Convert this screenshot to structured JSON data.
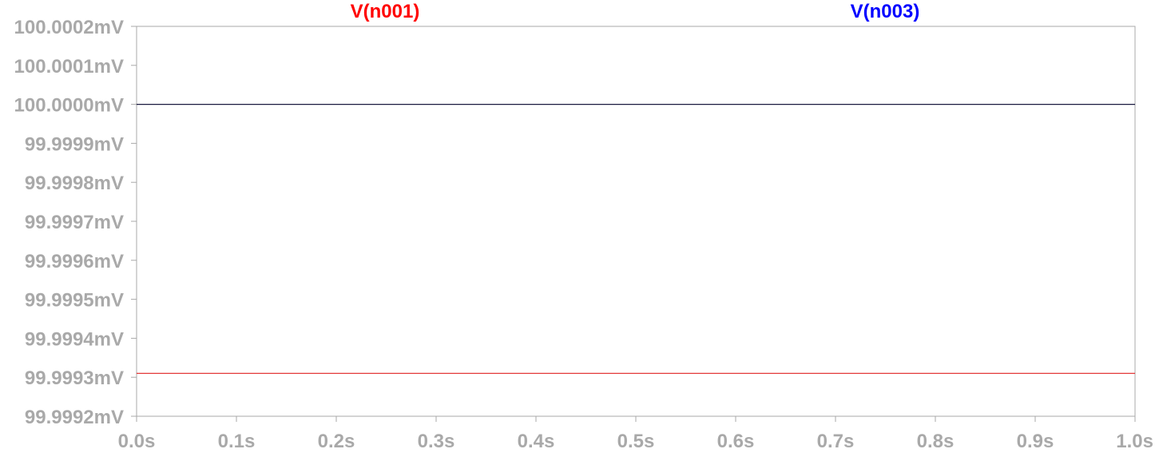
{
  "chart_data": {
    "type": "line",
    "x_unit": "s",
    "y_unit": "mV",
    "xlim": [
      0.0,
      1.0
    ],
    "ylim": [
      99.9992,
      100.0002
    ],
    "x_ticks": [
      {
        "value": 0.0,
        "label": "0.0s"
      },
      {
        "value": 0.1,
        "label": "0.1s"
      },
      {
        "value": 0.2,
        "label": "0.2s"
      },
      {
        "value": 0.3,
        "label": "0.3s"
      },
      {
        "value": 0.4,
        "label": "0.4s"
      },
      {
        "value": 0.5,
        "label": "0.5s"
      },
      {
        "value": 0.6,
        "label": "0.6s"
      },
      {
        "value": 0.7,
        "label": "0.7s"
      },
      {
        "value": 0.8,
        "label": "0.8s"
      },
      {
        "value": 0.9,
        "label": "0.9s"
      },
      {
        "value": 1.0,
        "label": "1.0s"
      }
    ],
    "y_ticks": [
      {
        "value": 100.0002,
        "label": "100.0002mV"
      },
      {
        "value": 100.0001,
        "label": "100.0001mV"
      },
      {
        "value": 100.0,
        "label": "100.0000mV"
      },
      {
        "value": 99.9999,
        "label": "99.9999mV"
      },
      {
        "value": 99.9998,
        "label": "99.9998mV"
      },
      {
        "value": 99.9997,
        "label": "99.9997mV"
      },
      {
        "value": 99.9996,
        "label": "99.9996mV"
      },
      {
        "value": 99.9995,
        "label": "99.9995mV"
      },
      {
        "value": 99.9994,
        "label": "99.9994mV"
      },
      {
        "value": 99.9993,
        "label": "99.9993mV"
      },
      {
        "value": 99.9992,
        "label": "99.9992mV"
      }
    ],
    "series": [
      {
        "name": "V(n001)",
        "color": "#ff0000",
        "line_color": "#e02020",
        "x": [
          0.0,
          1.0
        ],
        "y": [
          99.99931,
          99.99931
        ]
      },
      {
        "name": "V(n003)",
        "color": "#0000ff",
        "line_color": "#1a1a40",
        "x": [
          0.0,
          1.0
        ],
        "y": [
          100.0,
          100.0
        ]
      }
    ],
    "grid": false,
    "legend_placement": "top"
  }
}
